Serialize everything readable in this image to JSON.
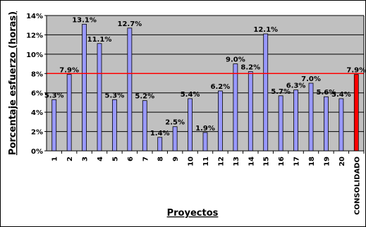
{
  "chart_data": {
    "type": "bar",
    "title": "",
    "xlabel": "Proyectos",
    "ylabel": "Porcentaje esfuerzo (horas)",
    "categories": [
      "1",
      "2",
      "3",
      "4",
      "5",
      "6",
      "7",
      "8",
      "9",
      "10",
      "11",
      "12",
      "13",
      "14",
      "15",
      "16",
      "17",
      "18",
      "19",
      "20",
      "CONSOLIDADO"
    ],
    "values": [
      5.3,
      7.9,
      13.1,
      11.1,
      5.3,
      12.7,
      5.2,
      1.4,
      2.5,
      5.4,
      1.9,
      6.2,
      9.0,
      8.2,
      12.1,
      5.7,
      6.3,
      7.0,
      5.6,
      5.4,
      7.9
    ],
    "data_labels": [
      "5.3%",
      "7.9%",
      "13.1%",
      "11.1%",
      "5.3%",
      "12.7%",
      "5.2%",
      "1.4%",
      "2.5%",
      "5.4%",
      "1.9%",
      "6.2%",
      "9.0%",
      "8.2%",
      "12.1%",
      "5.7%",
      "6.3%",
      "7.0%",
      "5.6%",
      "5.4%",
      "7.9%"
    ],
    "y_ticks": [
      "0%",
      "2%",
      "4%",
      "6%",
      "8%",
      "10%",
      "12%",
      "14%"
    ],
    "y_tick_values": [
      0,
      2,
      4,
      6,
      8,
      10,
      12,
      14
    ],
    "ylim": [
      0,
      14
    ],
    "reference_line": 8,
    "grid": true,
    "legend": "none",
    "colors": {
      "bar": "#9999ff",
      "highlight_bar": "#ff0000",
      "reference_line": "#ff0000",
      "plot_background": "#c0c0c0",
      "gridline": "#000000"
    }
  }
}
